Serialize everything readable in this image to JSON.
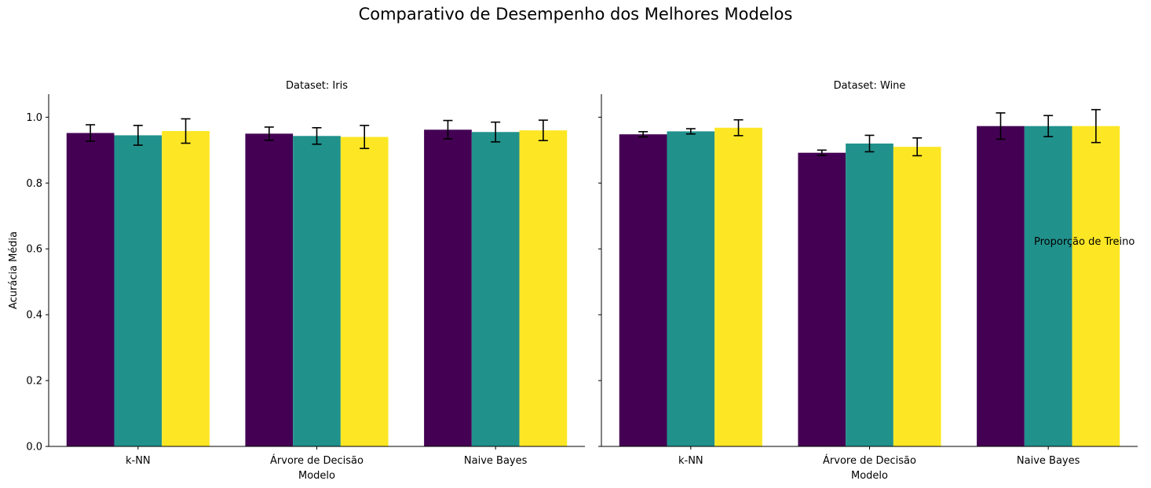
{
  "figure": {
    "title": "Comparativo de Desempenho dos Melhores Modelos",
    "legend_title": "Proporção de Treino"
  },
  "chart_data": [
    {
      "type": "bar",
      "title": "Dataset: Iris",
      "xlabel": "Modelo",
      "ylabel": "Acurácia Média",
      "ylim": [
        0,
        1.07
      ],
      "yticks": [
        "0.0",
        "0.2",
        "0.4",
        "0.6",
        "0.8",
        "1.0"
      ],
      "categories": [
        "k-NN",
        "Árvore de Decisão",
        "Naive Bayes"
      ],
      "series": [
        {
          "color": "#440154",
          "values": [
            0.952,
            0.95,
            0.962
          ],
          "errors": [
            0.025,
            0.02,
            0.028
          ]
        },
        {
          "color": "#21918c",
          "values": [
            0.945,
            0.943,
            0.955
          ],
          "errors": [
            0.03,
            0.025,
            0.03
          ]
        },
        {
          "color": "#fde725",
          "values": [
            0.958,
            0.94,
            0.96
          ],
          "errors": [
            0.037,
            0.035,
            0.031
          ]
        }
      ]
    },
    {
      "type": "bar",
      "title": "Dataset: Wine",
      "xlabel": "Modelo",
      "ylabel": "",
      "ylim": [
        0,
        1.07
      ],
      "yticks": [
        "0.0",
        "0.2",
        "0.4",
        "0.6",
        "0.8",
        "1.0"
      ],
      "categories": [
        "k-NN",
        "Árvore de Decisão",
        "Naive Bayes"
      ],
      "series": [
        {
          "color": "#440154",
          "values": [
            0.948,
            0.892,
            0.973
          ],
          "errors": [
            0.008,
            0.008,
            0.04
          ]
        },
        {
          "color": "#21918c",
          "values": [
            0.957,
            0.92,
            0.973
          ],
          "errors": [
            0.008,
            0.025,
            0.032
          ]
        },
        {
          "color": "#fde725",
          "values": [
            0.968,
            0.91,
            0.973
          ],
          "errors": [
            0.024,
            0.027,
            0.05
          ]
        }
      ]
    }
  ]
}
